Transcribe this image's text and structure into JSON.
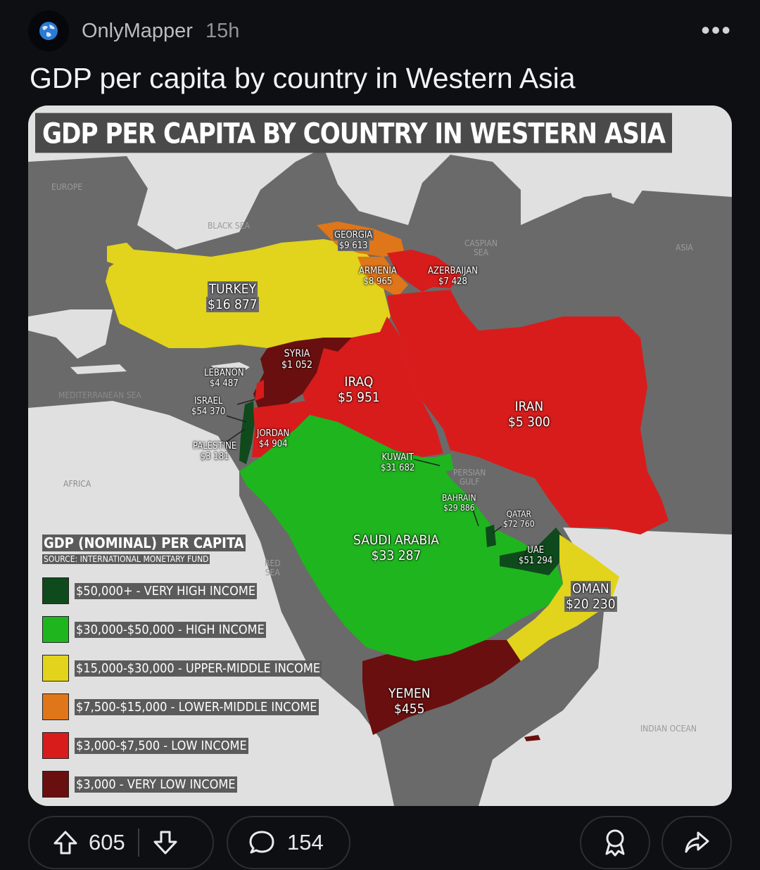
{
  "post": {
    "author": "OnlyMapper",
    "age": "15h",
    "title": "GDP per capita by country in Western Asia"
  },
  "map": {
    "title": "GDP PER CAPITA BY COUNTRY IN WESTERN ASIA",
    "countries": {
      "georgia": {
        "name": "GEORGIA",
        "value": "$9 613"
      },
      "armenia": {
        "name": "ARMENIA",
        "value": "$8 965"
      },
      "azerbaijan": {
        "name": "AZERBAIJAN",
        "value": "$7 428"
      },
      "turkey": {
        "name": "TURKEY",
        "value": "$16 877"
      },
      "syria": {
        "name": "SYRIA",
        "value": "$1 052"
      },
      "lebanon": {
        "name": "LEBANON",
        "value": "$4 487"
      },
      "israel": {
        "name": "ISRAEL",
        "value": "$54 370"
      },
      "palestine": {
        "name": "PALESTINE",
        "value": "$3 181"
      },
      "jordan": {
        "name": "JORDAN",
        "value": "$4 904"
      },
      "iraq": {
        "name": "IRAQ",
        "value": "$5 951"
      },
      "iran": {
        "name": "IRAN",
        "value": "$5 300"
      },
      "kuwait": {
        "name": "KUWAIT",
        "value": "$31 682"
      },
      "bahrain": {
        "name": "BAHRAIN",
        "value": "$29 886"
      },
      "qatar": {
        "name": "QATAR",
        "value": "$72 760"
      },
      "uae": {
        "name": "UAE",
        "value": "$51 294"
      },
      "saudi": {
        "name": "SAUDI ARABIA",
        "value": "$33 287"
      },
      "oman": {
        "name": "OMAN",
        "value": "$20 230"
      },
      "yemen": {
        "name": "YEMEN",
        "value": "$455"
      }
    },
    "seas": {
      "europe": "EUROPE",
      "black_sea": "BLACK SEA",
      "caspian_1": "CASPIAN",
      "caspian_2": "SEA",
      "asia": "ASIA",
      "mediterranean": "MEDITERRANEAN SEA",
      "africa": "AFRICA",
      "persian_1": "PERSIAN",
      "persian_2": "GULF",
      "red_1": "RED",
      "red_2": "SEA",
      "indian_ocean": "INDIAN OCEAN"
    },
    "legend": {
      "title": "GDP (NOMINAL) PER CAPITA",
      "source": "SOURCE: INTERNATIONAL MONETARY FUND",
      "items": [
        {
          "label": "$50,000+ - VERY HIGH INCOME",
          "color": "#0f4a1c"
        },
        {
          "label": "$30,000-$50,000 - HIGH INCOME",
          "color": "#1fb51f"
        },
        {
          "label": "$15,000-$30,000 - UPPER-MIDDLE INCOME",
          "color": "#e2d31c"
        },
        {
          "label": "$7,500-$15,000 - LOWER-MIDDLE INCOME",
          "color": "#e0761a"
        },
        {
          "label": "$3,000-$7,500 - LOW INCOME",
          "color": "#d81c1c"
        },
        {
          "label": "$3,000 - VERY LOW INCOME",
          "color": "#6a0f0f"
        }
      ]
    }
  },
  "actions": {
    "upvotes": "605",
    "comments": "154"
  },
  "colors": {
    "background": "#0e0f12",
    "sea": "#6a6a6a",
    "land": "#e0e0e0"
  }
}
